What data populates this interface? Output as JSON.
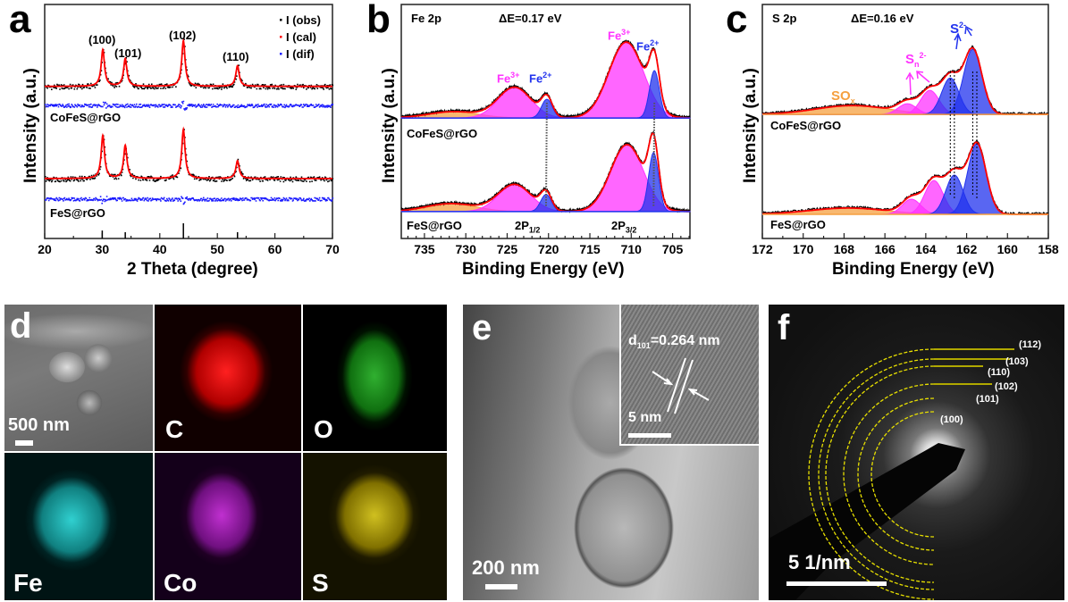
{
  "panels": {
    "a": {
      "label": "a",
      "ylabel": "Intensity (a.u.)",
      "xlabel": "2 Theta (degree)",
      "legend": [
        "I (obs)",
        "I (cal)",
        "I (dif)"
      ],
      "hkl": [
        "(100)",
        "(101)",
        "(102)",
        "(110)"
      ],
      "samples": [
        "CoFeS@rGO",
        "FeS@rGO"
      ]
    },
    "b": {
      "label": "b",
      "title": "Fe 2p",
      "delta": "ΔE=0.17 eV",
      "ylabel": "Intensity (a.u.)",
      "xlabel": "Binding Energy (eV)",
      "fe3": "Fe",
      "fe3_sup": "3+",
      "fe2": "Fe",
      "fe2_sup": "2+",
      "p12": "2P",
      "p12_sub": "1/2",
      "p32": "2P",
      "p32_sub": "3/2",
      "samples": [
        "CoFeS@rGO",
        "FeS@rGO"
      ]
    },
    "c": {
      "label": "c",
      "title": "S 2p",
      "delta": "ΔE=0.16 eV",
      "ylabel": "Intensity (a.u.)",
      "xlabel": "Binding Energy (eV)",
      "sox": "SO",
      "sox_sub": "x",
      "sn": "S",
      "sn_sub": "n",
      "sn_sup": "2-",
      "s2": "S",
      "s2_sup": "2-",
      "samples": [
        "CoFeS@rGO",
        "FeS@rGO"
      ]
    },
    "d": {
      "label": "d",
      "scale": "500 nm",
      "maps": [
        "C",
        "O",
        "Fe",
        "Co",
        "S"
      ]
    },
    "e": {
      "label": "e",
      "scale": "200 nm",
      "inset_scale": "5 nm",
      "d_spacing": "d",
      "d_sub": "101",
      "d_value": "=0.264 nm"
    },
    "f": {
      "label": "f",
      "scale": "5 1/nm",
      "rings": [
        "(112)",
        "(103)",
        "(110)",
        "(102)",
        "(101)",
        "(100)"
      ]
    }
  },
  "colors": {
    "obs": "#000000",
    "cal": "#ff0000",
    "dif": "#1a1aff",
    "fe3": "#ff33ff",
    "fe2": "#2233ee",
    "satellite": "#f5a040",
    "map_C": "#ff1a1a",
    "map_O": "#22aa22",
    "map_Fe": "#22c8c8",
    "map_Co": "#b020c0",
    "map_S": "#c8b400",
    "ring": "#e8e000"
  },
  "chart_data": [
    {
      "type": "scatter",
      "panel": "a",
      "xlabel": "2 Theta (degree)",
      "ylabel": "Intensity (a.u.)",
      "xlim": [
        20,
        70
      ],
      "xticks": [
        20,
        30,
        40,
        50,
        60,
        70
      ],
      "legend": "top-right",
      "series": [
        {
          "name": "CoFeS@rGO",
          "baseline": 65,
          "dif_level": 57,
          "peaks": [
            {
              "x": 30.1,
              "h": 15.6,
              "hkl": "(100)"
            },
            {
              "x": 34.0,
              "h": 11.8,
              "hkl": "(101)"
            },
            {
              "x": 44.1,
              "h": 19.5,
              "hkl": "(102)"
            },
            {
              "x": 53.5,
              "h": 8.8,
              "hkl": "(110)"
            }
          ]
        },
        {
          "name": "FeS@rGO",
          "baseline": 25.6,
          "dif_level": 17,
          "peaks": [
            {
              "x": 30.1,
              "h": 18.3
            },
            {
              "x": 34.0,
              "h": 14.1
            },
            {
              "x": 44.1,
              "h": 21
            },
            {
              "x": 53.5,
              "h": 7.6
            }
          ]
        }
      ],
      "reference_sticks": [
        {
          "x": 30.0,
          "h": 3.4
        },
        {
          "x": 34.0,
          "h": 2.7
        },
        {
          "x": 44.1,
          "h": 6.5
        },
        {
          "x": 53.5,
          "h": 2.7
        }
      ]
    },
    {
      "type": "area",
      "panel": "b",
      "title": "Fe 2p",
      "xlabel": "Binding Energy (eV)",
      "ylabel": "Intensity (a.u.)",
      "xlim": [
        737.8,
        702.9
      ],
      "xticks": [
        735,
        730,
        725,
        720,
        715,
        710,
        705
      ],
      "series": [
        {
          "name": "CoFeS@rGO",
          "baseline": 51.5,
          "components": [
            {
              "type": "satellite",
              "x": 731.5,
              "h": 2.7,
              "w": 3.0
            },
            {
              "type": "Fe3+",
              "x": 724.1,
              "h": 13,
              "w": 2.0
            },
            {
              "type": "Fe2+",
              "x": 720.2,
              "h": 8,
              "w": 0.65
            },
            {
              "type": "Fe3+",
              "x": 710.6,
              "h": 32.4,
              "w": 2.1
            },
            {
              "type": "Fe2+",
              "x": 707.2,
              "h": 20.2,
              "w": 0.6
            }
          ]
        },
        {
          "name": "FeS@rGO",
          "baseline": 11.5,
          "components": [
            {
              "type": "satellite",
              "x": 731.8,
              "h": 3.4,
              "w": 3.0
            },
            {
              "type": "Fe3+",
              "x": 724.1,
              "h": 11.5,
              "w": 2.0
            },
            {
              "type": "Fe2+",
              "x": 720.3,
              "h": 7.3,
              "w": 0.65
            },
            {
              "type": "Fe3+",
              "x": 710.5,
              "h": 28.6,
              "w": 2.0
            },
            {
              "type": "Fe2+",
              "x": 707.3,
              "h": 25.2,
              "w": 0.6
            }
          ]
        }
      ]
    },
    {
      "type": "area",
      "panel": "c",
      "title": "S 2p",
      "xlabel": "Binding Energy (eV)",
      "ylabel": "Intensity (a.u.)",
      "xlim": [
        172,
        158
      ],
      "xticks": [
        172,
        170,
        168,
        166,
        164,
        162,
        160,
        158
      ],
      "series": [
        {
          "name": "CoFeS@rGO",
          "baseline": 53,
          "components": [
            {
              "type": "SOx",
              "x": 167.6,
              "h": 3.8,
              "w": 1.8
            },
            {
              "type": "Sn2-",
              "x": 164.9,
              "h": 4.6,
              "w": 0.45
            },
            {
              "type": "Sn2-",
              "x": 163.8,
              "h": 10.3,
              "w": 0.45
            },
            {
              "type": "S2-",
              "x": 162.8,
              "h": 15.6,
              "w": 0.42
            },
            {
              "type": "S2-",
              "x": 161.7,
              "h": 27.9,
              "w": 0.45
            }
          ]
        },
        {
          "name": "FeS@rGO",
          "baseline": 10.3,
          "components": [
            {
              "type": "SOx",
              "x": 167.8,
              "h": 2.7,
              "w": 1.9
            },
            {
              "type": "Sn2-",
              "x": 164.7,
              "h": 6.5,
              "w": 0.45
            },
            {
              "type": "Sn2-",
              "x": 163.6,
              "h": 14.5,
              "w": 0.45
            },
            {
              "type": "S2-",
              "x": 162.6,
              "h": 16.8,
              "w": 0.42
            },
            {
              "type": "S2-",
              "x": 161.5,
              "h": 30.2,
              "w": 0.45
            }
          ]
        }
      ]
    }
  ]
}
